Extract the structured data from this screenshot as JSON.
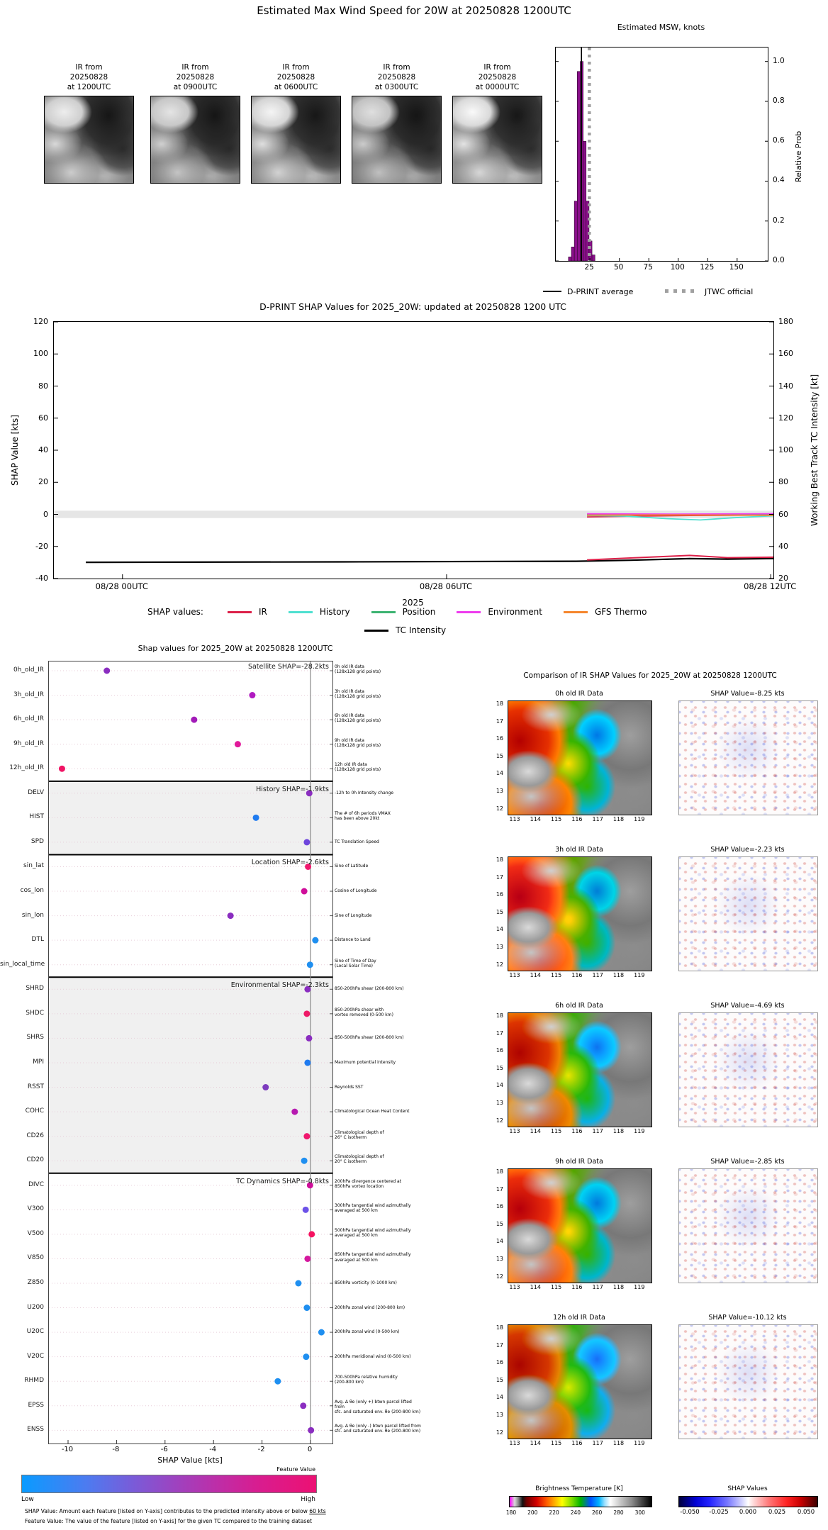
{
  "header": {
    "title": "Estimated Max Wind Speed for 20W at 20250828 1200UTC"
  },
  "ir_thumbnails": {
    "items": [
      {
        "line1": "IR from",
        "line2": "20250828",
        "line3": "at 1200UTC"
      },
      {
        "line1": "IR from",
        "line2": "20250828",
        "line3": "at 0900UTC"
      },
      {
        "line1": "IR from",
        "line2": "20250828",
        "line3": "at 0600UTC"
      },
      {
        "line1": "IR from",
        "line2": "20250828",
        "line3": "at 0300UTC"
      },
      {
        "line1": "IR from",
        "line2": "20250828",
        "line3": "at 0000UTC"
      }
    ]
  },
  "chart_data": {
    "histogram": {
      "type": "bar",
      "title": "Estimated MSW, knots",
      "ylabel": "Relative Prob",
      "yticks": [
        "0.0",
        "0.2",
        "0.4",
        "0.6",
        "0.8",
        "1.0"
      ],
      "xticks": [
        "25",
        "50",
        "75",
        "100",
        "125",
        "150"
      ],
      "x_range_kt": [
        -4,
        176
      ],
      "ylim": [
        0,
        1.07
      ],
      "bar_width_kt": 2.5,
      "bar_color": "#8a0f8a",
      "bars": [
        [
          8,
          0.02
        ],
        [
          10.5,
          0.07
        ],
        [
          13,
          0.3
        ],
        [
          15.5,
          0.95
        ],
        [
          18,
          1.0
        ],
        [
          20.5,
          0.6
        ],
        [
          23,
          0.3
        ],
        [
          25.5,
          0.1
        ],
        [
          28,
          0.03
        ]
      ],
      "avg_line_kt": 17.8,
      "jtwc_official_kt": 24.5,
      "legend": [
        {
          "label": "D-PRINT average"
        },
        {
          "label": "JTWC official"
        }
      ]
    },
    "shap_timeseries": {
      "type": "line",
      "title": "D-PRINT SHAP Values for 2025_20W: updated at 20250828 1200 UTC",
      "ylabel_left": "SHAP Value [kts]",
      "ylabel_right": "Working Best Track TC Intensity [kt]",
      "yticks_left": [
        "120",
        "100",
        "80",
        "60",
        "40",
        "20",
        "0",
        "-20",
        "-40"
      ],
      "yticks_right": [
        "180",
        "160",
        "140",
        "120",
        "100",
        "80",
        "60",
        "40",
        "20"
      ],
      "ylim_left": [
        -40,
        120
      ],
      "ylim_right": [
        20,
        180
      ],
      "xlabel": "2025",
      "xticks": [
        {
          "h": 0,
          "label": "08/28 00UTC"
        },
        {
          "h": 6,
          "label": "08/28 06UTC"
        },
        {
          "h": 12,
          "label": "08/28 12UTC"
        }
      ],
      "xlim_hours": [
        -1.27,
        12.05
      ],
      "zero_band": [
        -2.3,
        2.3
      ],
      "legend_prefix": "SHAP values:",
      "legend": [
        {
          "label": "IR",
          "color": "#dc2049"
        },
        {
          "label": "History",
          "color": "#4fe0d0"
        },
        {
          "label": "Position",
          "color": "#3cb371"
        },
        {
          "label": "Environment",
          "color": "#ee3cee"
        },
        {
          "label": "GFS Thermo",
          "color": "#f5862c"
        }
      ],
      "legend2": [
        {
          "label": "TC Intensity",
          "color": "#000000"
        }
      ],
      "series": [
        {
          "name": "TC Intensity",
          "color": "#000000",
          "width": 2.2,
          "points": [
            [
              -0.68,
              -29.9
            ],
            [
              4,
              -29.6
            ],
            [
              8.4,
              -29.2
            ],
            [
              9.4,
              -28.6
            ],
            [
              10.5,
              -27.6
            ],
            [
              11.2,
              -27.9
            ],
            [
              12.3,
              -27.4
            ]
          ]
        },
        {
          "name": "IR",
          "color": "#dc2049",
          "width": 1.8,
          "points": [
            [
              8.6,
              -1.6
            ],
            [
              9.5,
              -1.1
            ],
            [
              10.5,
              -0.7
            ],
            [
              12.3,
              -0.4
            ]
          ]
        },
        {
          "name": "History",
          "color": "#4fe0d0",
          "width": 1.8,
          "points": [
            [
              8.6,
              -0.7
            ],
            [
              9.3,
              -1.1
            ],
            [
              10.1,
              -2.7
            ],
            [
              10.7,
              -3.5
            ],
            [
              11.3,
              -2.1
            ],
            [
              12.3,
              -0.5
            ]
          ]
        },
        {
          "name": "Position",
          "color": "#3cb371",
          "width": 1.8,
          "points": [
            [
              8.6,
              -0.25
            ],
            [
              12.3,
              -0.25
            ]
          ]
        },
        {
          "name": "Environment",
          "color": "#ee3cee",
          "width": 1.8,
          "points": [
            [
              8.6,
              0.35
            ],
            [
              10.2,
              0.15
            ],
            [
              12.3,
              0.45
            ]
          ]
        },
        {
          "name": "GFS Thermo",
          "color": "#f5862c",
          "width": 1.8,
          "points": [
            [
              8.6,
              -0.5
            ],
            [
              10.3,
              -0.35
            ],
            [
              12.3,
              -0.6
            ]
          ]
        },
        {
          "name": "IR intensity overlay",
          "color": "#dc2049",
          "width": 2,
          "points": [
            [
              8.6,
              -28.4
            ],
            [
              9.4,
              -27.2
            ],
            [
              10.5,
              -25.6
            ],
            [
              11.2,
              -27.0
            ],
            [
              12.3,
              -26.6
            ]
          ]
        }
      ]
    },
    "feature_shap": {
      "type": "scatter",
      "title": "Shap values for 2025_20W at 20250828 1200UTC",
      "xlabel": "SHAP Value [kts]",
      "xtick_vals": [
        -10,
        -8,
        -6,
        -4,
        -2,
        0
      ],
      "xticks": [
        "-10",
        "-8",
        "-6",
        "-4",
        "-2",
        "0"
      ],
      "colorbar": {
        "label": "Feature Value",
        "low": "Low",
        "high": "High"
      },
      "footnote1": "SHAP Value: Amount each feature [listed on Y-axis] contributes to the predicted intensity above or below ",
      "footnote1_underlined": "60 kts",
      "footnote2": "Feature Value: The value of the feature [listed on Y-axis] for the given TC compared to the training dataset",
      "sections": [
        {
          "label": "Satellite SHAP=-28.2kts",
          "start": 0,
          "end": 4,
          "bg": "#ffffff"
        },
        {
          "label": "History SHAP=-1.9kts",
          "start": 5,
          "end": 7,
          "bg": "#f0f0f0"
        },
        {
          "label": "Location SHAP=-2.6kts",
          "start": 8,
          "end": 12,
          "bg": "#ffffff"
        },
        {
          "label": "Environmental SHAP=-2.3kts",
          "start": 13,
          "end": 20,
          "bg": "#f0f0f0"
        },
        {
          "label": "TC Dynamics SHAP=-0.8kts",
          "start": 21,
          "end": 31,
          "bg": "#ffffff"
        }
      ],
      "rows": [
        {
          "name": "0h_old_IR",
          "value": -8.4,
          "color": "#8a2dc0",
          "desc": "0h old IR data\n(128x128 grid points)"
        },
        {
          "name": "3h_old_IR",
          "value": -2.4,
          "color": "#b01bc0",
          "desc": "3h old IR data\n(128x128 grid points)"
        },
        {
          "name": "6h_old_IR",
          "value": -4.8,
          "color": "#a21bb8",
          "desc": "6h old IR data\n(128x128 grid points)"
        },
        {
          "name": "9h_old_IR",
          "value": -3.0,
          "color": "#e1199a",
          "desc": "9h old IR data\n(128x128 grid points)"
        },
        {
          "name": "12h_old_IR",
          "value": -10.25,
          "color": "#f01464",
          "desc": "12h old IR data\n(128x128 grid points)"
        },
        {
          "name": "DELV",
          "value": -0.05,
          "color": "#8a2dc0",
          "desc": "-12h to 0h Intensity change"
        },
        {
          "name": "HIST",
          "value": -2.25,
          "color": "#1f7bf0",
          "desc": "The # of 6h periods VMAX\nhas been above 20kt"
        },
        {
          "name": "SPD",
          "value": -0.15,
          "color": "#6e46dc",
          "desc": "TC Translation Speed"
        },
        {
          "name": "sin_lat",
          "value": -0.1,
          "color": "#f0186e",
          "desc": "Sine of Latitude"
        },
        {
          "name": "cos_lon",
          "value": -0.26,
          "color": "#cf0e9a",
          "desc": "Cosine of Longitude"
        },
        {
          "name": "sin_lon",
          "value": -3.3,
          "color": "#8a2dc0",
          "desc": "Sine of Longitude"
        },
        {
          "name": "DTL",
          "value": 0.2,
          "color": "#1f8ff0",
          "desc": "Distance to Land"
        },
        {
          "name": "sin_local_time",
          "value": -0.02,
          "color": "#1f8ff0",
          "desc": "Sine of Time of Day\n(Local Solar Time)"
        },
        {
          "name": "SHRD",
          "value": -0.12,
          "color": "#8a2dc0",
          "desc": "850-200hPa shear (200-800 km)"
        },
        {
          "name": "SHDC",
          "value": -0.15,
          "color": "#ee1a67",
          "desc": "850-200hPa shear with\nvortex removed (0-500 km)"
        },
        {
          "name": "SHRS",
          "value": -0.06,
          "color": "#8a2dc0",
          "desc": "850-500hPa shear (200-800 km)"
        },
        {
          "name": "MPI",
          "value": -0.12,
          "color": "#1f7bf0",
          "desc": "Maximum potential intensity"
        },
        {
          "name": "RSST",
          "value": -1.85,
          "color": "#7d3cbe",
          "desc": "Reynolds SST"
        },
        {
          "name": "COHC",
          "value": -0.65,
          "color": "#b619b0",
          "desc": "Climatological Ocean Heat Content"
        },
        {
          "name": "CD26",
          "value": -0.15,
          "color": "#f0186e",
          "desc": "Climatological depth of\n26° C isotherm"
        },
        {
          "name": "CD20",
          "value": -0.26,
          "color": "#1f8ff0",
          "desc": "Climatological depth of\n20° C isotherm"
        },
        {
          "name": "DIVC",
          "value": -0.02,
          "color": "#cf0e9a",
          "desc": "200hPa divergence centered at\n850hPa vortex location"
        },
        {
          "name": "V300",
          "value": -0.2,
          "color": "#6c52e8",
          "desc": "300hPa tangential wind azimuthally\naveraged at 500 km"
        },
        {
          "name": "V500",
          "value": 0.05,
          "color": "#f51260",
          "desc": "500hPa tangential wind azimuthally\naveraged at 500 km"
        },
        {
          "name": "V850",
          "value": -0.12,
          "color": "#d4189e",
          "desc": "850hPa tangential wind azimuthally\naveraged at 500 km"
        },
        {
          "name": "Z850",
          "value": -0.5,
          "color": "#1f8ff0",
          "desc": "850hPa vorticity (0-1000 km)"
        },
        {
          "name": "U200",
          "value": -0.15,
          "color": "#1f8ff0",
          "desc": "200hPa zonal wind (200-800 km)"
        },
        {
          "name": "U20C",
          "value": 0.45,
          "color": "#1f8ff0",
          "desc": "200hPa zonal wind (0-500 km)"
        },
        {
          "name": "V20C",
          "value": -0.18,
          "color": "#1f8ff0",
          "desc": "200hPa meridional wind (0-500 km)"
        },
        {
          "name": "RHMD",
          "value": -1.35,
          "color": "#1f8ff0",
          "desc": "700-500hPa relative humidity\n(200-800 km)"
        },
        {
          "name": "EPSS",
          "value": -0.3,
          "color": "#8a2dc0",
          "desc": "Avg. Δ θe (only +) btwn parcel lifted from\nsfc. and saturated env. θe (200-800 km)"
        },
        {
          "name": "ENSS",
          "value": 0.02,
          "color": "#8a2dc0",
          "desc": "Avg. Δ θe (only -) btwn parcel lifted from\nsfc. and saturated env. θe (200-800 km)"
        }
      ]
    },
    "ir_comparison": {
      "type": "heatmap",
      "title": "Comparison of IR SHAP Values for 2025_20W at 20250828 1200UTC",
      "rows": [
        {
          "ir_title": "0h old IR Data",
          "shap_title": "SHAP Value=-8.25 kts",
          "shap_value_kts": -8.25
        },
        {
          "ir_title": "3h old IR Data",
          "shap_title": "SHAP Value=-2.23 kts",
          "shap_value_kts": -2.23
        },
        {
          "ir_title": "6h old IR Data",
          "shap_title": "SHAP Value=-4.69 kts",
          "shap_value_kts": -4.69
        },
        {
          "ir_title": "9h old IR Data",
          "shap_title": "SHAP Value=-2.85 kts",
          "shap_value_kts": -2.85
        },
        {
          "ir_title": "12h old IR Data",
          "shap_title": "SHAP Value=-10.12 kts",
          "shap_value_kts": -10.12
        }
      ],
      "map_xticks": [
        "113",
        "114",
        "115",
        "116",
        "117",
        "118",
        "119"
      ],
      "map_yticks": [
        "18",
        "17",
        "16",
        "15",
        "14",
        "13",
        "12"
      ],
      "bt_colorbar": {
        "label": "Brightness Temperature [K]",
        "ticks": [
          "180",
          "200",
          "220",
          "240",
          "260",
          "280",
          "300"
        ]
      },
      "shap_colorbar": {
        "label": "SHAP Values",
        "ticks": [
          "-0.050",
          "-0.025",
          "0.000",
          "0.025",
          "0.050"
        ]
      }
    }
  }
}
